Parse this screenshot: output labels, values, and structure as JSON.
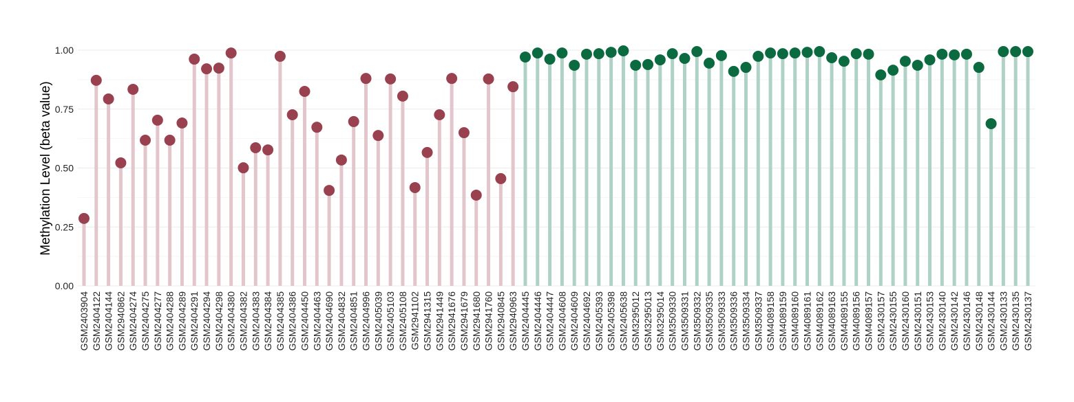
{
  "chart_data": {
    "type": "lollipop",
    "title": "",
    "xlabel": "",
    "ylabel": "Methylation Level (beta value)",
    "ylim": [
      0,
      1.05
    ],
    "yticks": [
      "0.00",
      "0.25",
      "0.50",
      "0.75",
      "1.00"
    ],
    "grid": true,
    "legend": "none",
    "colors": {
      "group1_dot": "#9a4150",
      "group1_stem": "#e2c6cc",
      "group2_dot": "#0b6a40",
      "group2_stem": "#b0d2c6",
      "grid": "#ebebeb"
    },
    "groups": [
      {
        "categories": [
          "GSM2403904",
          "GSM2404122",
          "GSM2404144",
          "GSM2940862",
          "GSM2404274",
          "GSM2404275",
          "GSM2404277",
          "GSM2404288",
          "GSM2404289",
          "GSM2404291",
          "GSM2404294",
          "GSM2404298",
          "GSM2404380",
          "GSM2404382",
          "GSM2404383",
          "GSM2404384",
          "GSM2404385",
          "GSM2404386",
          "GSM2404450",
          "GSM2404463",
          "GSM2404690",
          "GSM2404832",
          "GSM2404851",
          "GSM2404996",
          "GSM2405039",
          "GSM2405103",
          "GSM2405108",
          "GSM2941102",
          "GSM2941315",
          "GSM2941449",
          "GSM2941676",
          "GSM2941679",
          "GSM2941680",
          "GSM2941760",
          "GSM2940845",
          "GSM2940963"
        ],
        "values": [
          0.286,
          0.872,
          0.793,
          0.522,
          0.834,
          0.618,
          0.703,
          0.618,
          0.691,
          0.962,
          0.921,
          0.924,
          0.988,
          0.501,
          0.586,
          0.577,
          0.974,
          0.726,
          0.825,
          0.673,
          0.405,
          0.534,
          0.697,
          0.88,
          0.638,
          0.878,
          0.805,
          0.417,
          0.566,
          0.726,
          0.88,
          0.65,
          0.385,
          0.878,
          0.455,
          0.845
        ]
      },
      {
        "categories": [
          "GSM2404445",
          "GSM2404446",
          "GSM2404447",
          "GSM2404608",
          "GSM2404609",
          "GSM2404692",
          "GSM2405393",
          "GSM2405398",
          "GSM2405638",
          "GSM3295012",
          "GSM3295013",
          "GSM3295014",
          "GSM3509330",
          "GSM3509331",
          "GSM3509332",
          "GSM3509335",
          "GSM3509333",
          "GSM3509336",
          "GSM3509334",
          "GSM3509337",
          "GSM4089158",
          "GSM4089159",
          "GSM4089160",
          "GSM4089161",
          "GSM4089162",
          "GSM4089163",
          "GSM4089155",
          "GSM4089156",
          "GSM4089157",
          "GSM2430157",
          "GSM2430155",
          "GSM2430160",
          "GSM2430151",
          "GSM2430153",
          "GSM2430140",
          "GSM2430142",
          "GSM2430146",
          "GSM2430148",
          "GSM2430144",
          "GSM2430133",
          "GSM2430135",
          "GSM2430137"
        ],
        "values": [
          0.971,
          0.988,
          0.962,
          0.988,
          0.936,
          0.983,
          0.985,
          0.991,
          0.997,
          0.936,
          0.939,
          0.959,
          0.985,
          0.965,
          0.994,
          0.945,
          0.977,
          0.91,
          0.927,
          0.974,
          0.988,
          0.985,
          0.988,
          0.991,
          0.994,
          0.968,
          0.953,
          0.985,
          0.983,
          0.895,
          0.915,
          0.953,
          0.936,
          0.959,
          0.983,
          0.98,
          0.983,
          0.927,
          0.688,
          0.994,
          0.994,
          0.994
        ]
      }
    ]
  }
}
